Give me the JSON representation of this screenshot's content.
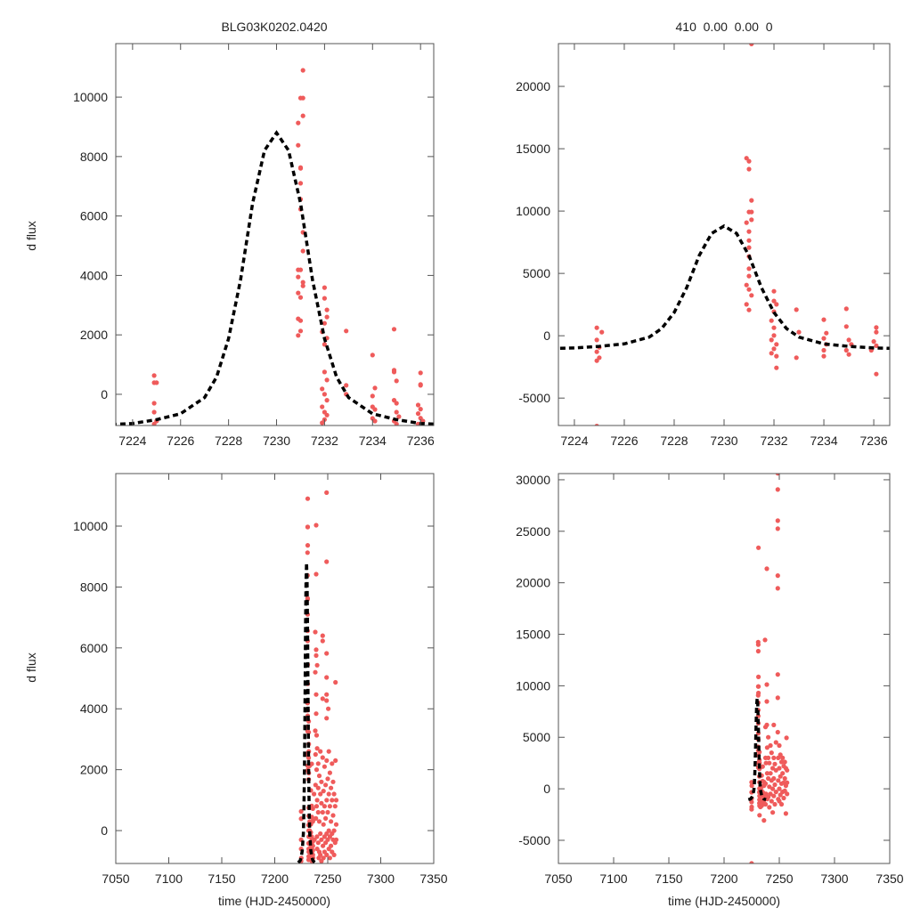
{
  "chart_data": {
    "type": "scatter",
    "title_left": "BLG03K0202.0420",
    "title_right": "410  0.00  0.00  0",
    "ylabel": "d flux",
    "xlabel": "time (HJD-2450000)",
    "colors": {
      "points": "#ef5b5b",
      "model": "#000000",
      "frame": "#555555"
    },
    "model": {
      "name": "model fit (dashed)",
      "points": [
        [
          7222,
          -1050
        ],
        [
          7223,
          -1021
        ],
        [
          7224,
          -981
        ],
        [
          7225,
          -852
        ],
        [
          7226,
          -655
        ],
        [
          7227,
          -110
        ],
        [
          7227.5,
          583
        ],
        [
          7228,
          1870
        ],
        [
          7228.5,
          3850
        ],
        [
          7229,
          6424
        ],
        [
          7229.5,
          8206
        ],
        [
          7230,
          8800
        ],
        [
          7230.5,
          8206
        ],
        [
          7231,
          6424
        ],
        [
          7231.5,
          3850
        ],
        [
          7232,
          1870
        ],
        [
          7232.5,
          583
        ],
        [
          7233,
          -110
        ],
        [
          7234,
          -655
        ],
        [
          7235,
          -852
        ],
        [
          7236,
          -981
        ],
        [
          7237,
          -1021
        ],
        [
          7238,
          -1050
        ]
      ]
    },
    "dataset_left": [
      [
        7224.9,
        630
      ],
      [
        7224.9,
        390
      ],
      [
        7225.0,
        390
      ],
      [
        7224.9,
        -300
      ],
      [
        7224.9,
        -600
      ],
      [
        7225.0,
        -900
      ],
      [
        7224.9,
        -1000
      ],
      [
        7231.1,
        10900
      ],
      [
        7231.0,
        9970
      ],
      [
        7231.1,
        9970
      ],
      [
        7231.1,
        9370
      ],
      [
        7230.9,
        9130
      ],
      [
        7230.9,
        8380
      ],
      [
        7231.0,
        7630
      ],
      [
        7231.0,
        7600
      ],
      [
        7231.0,
        7100
      ],
      [
        7231.0,
        6560
      ],
      [
        7231.0,
        6230
      ],
      [
        7231.1,
        5450
      ],
      [
        7231.1,
        4820
      ],
      [
        7230.9,
        4190
      ],
      [
        7231.0,
        4190
      ],
      [
        7230.9,
        3950
      ],
      [
        7231.1,
        3770
      ],
      [
        7231.1,
        3650
      ],
      [
        7230.9,
        3410
      ],
      [
        7231.0,
        3260
      ],
      [
        7230.9,
        2540
      ],
      [
        7231.0,
        2480
      ],
      [
        7231.0,
        2130
      ],
      [
        7230.9,
        1980
      ],
      [
        7232.0,
        3590
      ],
      [
        7232.0,
        3230
      ],
      [
        7232.1,
        2840
      ],
      [
        7232.1,
        2600
      ],
      [
        7232.0,
        2390
      ],
      [
        7231.9,
        2100
      ],
      [
        7232.1,
        1890
      ],
      [
        7232.0,
        1680
      ],
      [
        7232.0,
        750
      ],
      [
        7232.1,
        480
      ],
      [
        7231.9,
        180
      ],
      [
        7232.0,
        0
      ],
      [
        7232.1,
        -200
      ],
      [
        7231.9,
        -420
      ],
      [
        7232.0,
        -600
      ],
      [
        7232.1,
        -700
      ],
      [
        7231.9,
        -960
      ],
      [
        7232.0,
        -850
      ],
      [
        7232.9,
        2130
      ],
      [
        7232.9,
        300
      ],
      [
        7232.9,
        0
      ],
      [
        7234.0,
        1320
      ],
      [
        7234.1,
        210
      ],
      [
        7234.0,
        -60
      ],
      [
        7234.0,
        -420
      ],
      [
        7234.1,
        -510
      ],
      [
        7234.0,
        -810
      ],
      [
        7234.1,
        -900
      ],
      [
        7234.9,
        2190
      ],
      [
        7234.9,
        810
      ],
      [
        7234.9,
        750
      ],
      [
        7235.0,
        450
      ],
      [
        7234.9,
        -200
      ],
      [
        7235.0,
        -300
      ],
      [
        7235.0,
        -600
      ],
      [
        7235.1,
        -750
      ],
      [
        7234.9,
        -900
      ],
      [
        7235.0,
        -1000
      ],
      [
        7236.0,
        720
      ],
      [
        7236.0,
        300
      ],
      [
        7236.0,
        330
      ],
      [
        7235.9,
        -360
      ],
      [
        7236.0,
        -500
      ],
      [
        7235.9,
        -650
      ],
      [
        7236.0,
        -800
      ],
      [
        7236.1,
        -900
      ],
      [
        7235.9,
        -1000
      ],
      [
        7237.1,
        1200
      ],
      [
        7237.5,
        -300
      ],
      [
        7238.2,
        6520
      ],
      [
        7238.2,
        5200
      ],
      [
        7238.2,
        3280
      ],
      [
        7238.5,
        2500
      ],
      [
        7238.5,
        1500
      ],
      [
        7238.8,
        400
      ],
      [
        7239.1,
        10030
      ],
      [
        7239.1,
        8420
      ],
      [
        7239.1,
        5940
      ],
      [
        7239.1,
        5750
      ],
      [
        7239.1,
        4470
      ],
      [
        7239.1,
        3840
      ],
      [
        7239.5,
        3130
      ],
      [
        7239.5,
        2000
      ],
      [
        7239.5,
        800
      ],
      [
        7239.8,
        -200
      ],
      [
        7240,
        5430
      ],
      [
        7240,
        2700
      ],
      [
        7240,
        1000
      ],
      [
        7240,
        -600
      ],
      [
        7241,
        2200
      ],
      [
        7241,
        1400
      ],
      [
        7241,
        600
      ],
      [
        7241,
        -400
      ],
      [
        7241.5,
        -900
      ],
      [
        7242,
        1800
      ],
      [
        7242,
        300
      ],
      [
        7242,
        -700
      ],
      [
        7243,
        2600
      ],
      [
        7243,
        1200
      ],
      [
        7243,
        -100
      ],
      [
        7243,
        -800
      ],
      [
        7244,
        1600
      ],
      [
        7244,
        900
      ],
      [
        7244,
        -300
      ],
      [
        7244,
        -1000
      ],
      [
        7245.2,
        6400
      ],
      [
        7245.2,
        6230
      ],
      [
        7245.2,
        4330
      ],
      [
        7245.2,
        2400
      ],
      [
        7245.2,
        600
      ],
      [
        7245.5,
        -500
      ],
      [
        7246,
        1300
      ],
      [
        7246,
        200
      ],
      [
        7246,
        -900
      ],
      [
        7247,
        2100
      ],
      [
        7247,
        800
      ],
      [
        7247,
        -200
      ],
      [
        7247,
        -700
      ],
      [
        7248,
        1500
      ],
      [
        7248,
        400
      ],
      [
        7248,
        -400
      ],
      [
        7248.9,
        11100
      ],
      [
        7248.9,
        8830
      ],
      [
        7248.9,
        5820
      ],
      [
        7248.9,
        5030
      ],
      [
        7248.9,
        4470
      ],
      [
        7248.9,
        4270
      ],
      [
        7248.9,
        3690
      ],
      [
        7249,
        2300
      ],
      [
        7249,
        1000
      ],
      [
        7249,
        -100
      ],
      [
        7249,
        -800
      ],
      [
        7250,
        1700
      ],
      [
        7250,
        600
      ],
      [
        7250,
        -300
      ],
      [
        7250.5,
        4000
      ],
      [
        7251,
        2600
      ],
      [
        7251,
        1200
      ],
      [
        7251,
        0
      ],
      [
        7251,
        -600
      ],
      [
        7252,
        1900
      ],
      [
        7252,
        800
      ],
      [
        7252,
        -200
      ],
      [
        7252,
        -900
      ],
      [
        7253,
        1400
      ],
      [
        7253,
        300
      ],
      [
        7253,
        -500
      ],
      [
        7254,
        2200
      ],
      [
        7254,
        1000
      ],
      [
        7254,
        -100
      ],
      [
        7254,
        -700
      ],
      [
        7255,
        1600
      ],
      [
        7255,
        500
      ],
      [
        7255,
        -300
      ],
      [
        7256,
        1200
      ],
      [
        7256,
        0
      ],
      [
        7256,
        -800
      ],
      [
        7257.3,
        4870
      ],
      [
        7257.3,
        2300
      ],
      [
        7257,
        800
      ],
      [
        7257,
        -400
      ],
      [
        7258,
        1000
      ],
      [
        7258,
        200
      ],
      [
        7258,
        -300
      ]
    ],
    "dataset_right": [
      [
        7224.9,
        640
      ],
      [
        7225.1,
        290
      ],
      [
        7224.9,
        -340
      ],
      [
        7225.0,
        -930
      ],
      [
        7224.9,
        -1290
      ],
      [
        7225.0,
        -1760
      ],
      [
        7224.9,
        -2000
      ],
      [
        7224.9,
        -7240
      ],
      [
        7231.1,
        23400
      ],
      [
        7230.9,
        14240
      ],
      [
        7231.0,
        14000
      ],
      [
        7231.0,
        13360
      ],
      [
        7231.1,
        10860
      ],
      [
        7231.0,
        9930
      ],
      [
        7231.1,
        9930
      ],
      [
        7231.1,
        9300
      ],
      [
        7230.9,
        9070
      ],
      [
        7231.0,
        8360
      ],
      [
        7231.0,
        7640
      ],
      [
        7231.0,
        7070
      ],
      [
        7231.0,
        6360
      ],
      [
        7231.0,
        5380
      ],
      [
        7231.0,
        4790
      ],
      [
        7230.9,
        4070
      ],
      [
        7231.0,
        3710
      ],
      [
        7231.1,
        3240
      ],
      [
        7230.9,
        2520
      ],
      [
        7231.0,
        2070
      ],
      [
        7232.0,
        3570
      ],
      [
        7232.0,
        2790
      ],
      [
        7232.1,
        2520
      ],
      [
        7232.0,
        1930
      ],
      [
        7231.9,
        1210
      ],
      [
        7232.0,
        640
      ],
      [
        7232.0,
        20
      ],
      [
        7231.9,
        -340
      ],
      [
        7232.1,
        -690
      ],
      [
        7232.0,
        -1050
      ],
      [
        7231.9,
        -1400
      ],
      [
        7232.1,
        -1640
      ],
      [
        7232.1,
        -2570
      ],
      [
        7232.9,
        2090
      ],
      [
        7233.0,
        290
      ],
      [
        7232.9,
        -1760
      ],
      [
        7234.0,
        1290
      ],
      [
        7234.1,
        210
      ],
      [
        7234.0,
        -210
      ],
      [
        7234.1,
        -690
      ],
      [
        7234.0,
        -1170
      ],
      [
        7234.0,
        -1640
      ],
      [
        7234.9,
        2160
      ],
      [
        7234.9,
        740
      ],
      [
        7235.0,
        -340
      ],
      [
        7235.1,
        -690
      ],
      [
        7234.9,
        -1170
      ],
      [
        7235.0,
        -1500
      ],
      [
        7236.1,
        660
      ],
      [
        7236.1,
        290
      ],
      [
        7236.0,
        -460
      ],
      [
        7236.1,
        -800
      ],
      [
        7235.9,
        -1170
      ],
      [
        7236.1,
        -3070
      ],
      [
        7237.1,
        14450
      ],
      [
        7237.5,
        6000
      ],
      [
        7237.5,
        3000
      ],
      [
        7237.5,
        500
      ],
      [
        7237.5,
        -1500
      ],
      [
        7238,
        2500
      ],
      [
        7238,
        -500
      ],
      [
        7238.7,
        21360
      ],
      [
        7238.7,
        10120
      ],
      [
        7238.7,
        8480
      ],
      [
        7238.7,
        6200
      ],
      [
        7239,
        4000
      ],
      [
        7239,
        1500
      ],
      [
        7239,
        -1000
      ],
      [
        7240,
        5000
      ],
      [
        7240,
        3000
      ],
      [
        7240,
        1000
      ],
      [
        7240,
        -800
      ],
      [
        7241,
        2500
      ],
      [
        7241,
        200
      ],
      [
        7241,
        -1800
      ],
      [
        7242,
        4200
      ],
      [
        7242,
        1500
      ],
      [
        7242,
        -500
      ],
      [
        7243,
        3500
      ],
      [
        7243,
        800
      ],
      [
        7243,
        -1200
      ],
      [
        7244,
        2000
      ],
      [
        7244,
        0
      ],
      [
        7244,
        -2300
      ],
      [
        7245,
        6200
      ],
      [
        7245,
        3000
      ],
      [
        7245,
        1000
      ],
      [
        7245,
        -700
      ],
      [
        7246,
        2400
      ],
      [
        7246,
        400
      ],
      [
        7246,
        -1500
      ],
      [
        7247,
        4500
      ],
      [
        7247,
        1800
      ],
      [
        7247,
        -300
      ],
      [
        7248.6,
        30630
      ],
      [
        7248.6,
        29050
      ],
      [
        7248.6,
        26030
      ],
      [
        7248.6,
        25250
      ],
      [
        7248.6,
        20700
      ],
      [
        7248.6,
        19460
      ],
      [
        7248.6,
        11100
      ],
      [
        7248.6,
        8830
      ],
      [
        7248.6,
        5500
      ],
      [
        7249,
        3000
      ],
      [
        7249,
        800
      ],
      [
        7249,
        -1000
      ],
      [
        7250,
        4200
      ],
      [
        7250,
        2000
      ],
      [
        7250,
        0
      ],
      [
        7250,
        -1200
      ],
      [
        7251,
        3300
      ],
      [
        7251,
        1200
      ],
      [
        7251,
        -600
      ],
      [
        7252,
        2600
      ],
      [
        7252,
        500
      ],
      [
        7252,
        -1500
      ],
      [
        7253,
        3000
      ],
      [
        7253,
        1500
      ],
      [
        7253,
        -300
      ],
      [
        7254,
        2200
      ],
      [
        7254,
        600
      ],
      [
        7254,
        -900
      ],
      [
        7255,
        2600
      ],
      [
        7255,
        1000
      ],
      [
        7255,
        -200
      ],
      [
        7256,
        2000
      ],
      [
        7256,
        300
      ],
      [
        7256.5,
        4940
      ],
      [
        7256,
        -2400
      ],
      [
        7257,
        1800
      ],
      [
        7257,
        600
      ],
      [
        7257,
        -500
      ]
    ],
    "panels": [
      {
        "id": "top-left",
        "dataset": "dataset_left",
        "xlim": [
          7223.3,
          7236.55
        ],
        "ylim": [
          -1050,
          11800
        ],
        "xticks": [
          7224,
          7226,
          7228,
          7230,
          7232,
          7234,
          7236
        ],
        "yticks": [
          0,
          2000,
          4000,
          6000,
          8000,
          10000
        ]
      },
      {
        "id": "top-right",
        "dataset": "dataset_right",
        "xlim": [
          7223.36,
          7236.64
        ],
        "ylim": [
          -7200,
          23430
        ],
        "xticks": [
          7224,
          7226,
          7228,
          7230,
          7232,
          7234,
          7236
        ],
        "yticks": [
          -5000,
          0,
          5000,
          10000,
          15000,
          20000
        ]
      },
      {
        "id": "bottom-left",
        "dataset": "dataset_left",
        "xlim": [
          7050,
          7350
        ],
        "ylim": [
          -1080,
          11725
        ],
        "xticks": [
          7050,
          7100,
          7150,
          7200,
          7250,
          7300,
          7350
        ],
        "yticks": [
          0,
          2000,
          4000,
          6000,
          8000,
          10000
        ]
      },
      {
        "id": "bottom-right",
        "dataset": "dataset_right",
        "xlim": [
          7050,
          7350
        ],
        "ylim": [
          -7250,
          30600
        ],
        "xticks": [
          7050,
          7100,
          7150,
          7200,
          7250,
          7300,
          7350
        ],
        "yticks": [
          -5000,
          0,
          5000,
          10000,
          15000,
          20000,
          25000,
          30000
        ]
      }
    ]
  }
}
